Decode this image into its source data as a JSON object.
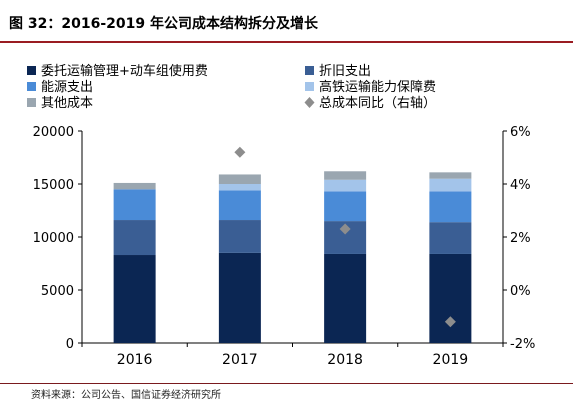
{
  "title": "图 32：2016-2019 年公司成本结构拆分及增长",
  "source": "资料来源：公司公告、国信证券经济研究所",
  "chart_data": {
    "type": "bar",
    "stacked": true,
    "categories": [
      "2016",
      "2017",
      "2018",
      "2019"
    ],
    "series": [
      {
        "name": "委托运输管理+动车组使用费",
        "color": "#0b2653",
        "values": [
          8300,
          8500,
          8400,
          8400
        ]
      },
      {
        "name": "折旧支出",
        "color": "#3a5e94",
        "values": [
          3300,
          3100,
          3100,
          3000
        ]
      },
      {
        "name": "能源支出",
        "color": "#4a8bd7",
        "values": [
          2900,
          2800,
          2800,
          2900
        ]
      },
      {
        "name": "高铁运输能力保障费",
        "color": "#a3c4ea",
        "values": [
          0,
          600,
          1100,
          1200
        ]
      },
      {
        "name": "其他成本",
        "color": "#9aa6b0",
        "values": [
          600,
          900,
          800,
          600
        ]
      }
    ],
    "line_series": {
      "name": "总成本同比（右轴）",
      "color": "#8d8d8d",
      "marker": "diamond",
      "values": [
        null,
        5.2,
        2.3,
        -1.2
      ]
    },
    "y_left": {
      "min": 0,
      "max": 20000,
      "ticks": [
        "0",
        "5000",
        "10000",
        "15000",
        "20000"
      ]
    },
    "y_right": {
      "min": -2,
      "max": 6,
      "ticks": [
        "-2%",
        "0%",
        "2%",
        "4%",
        "6%"
      ]
    },
    "legend_position": "top",
    "grid": false
  }
}
